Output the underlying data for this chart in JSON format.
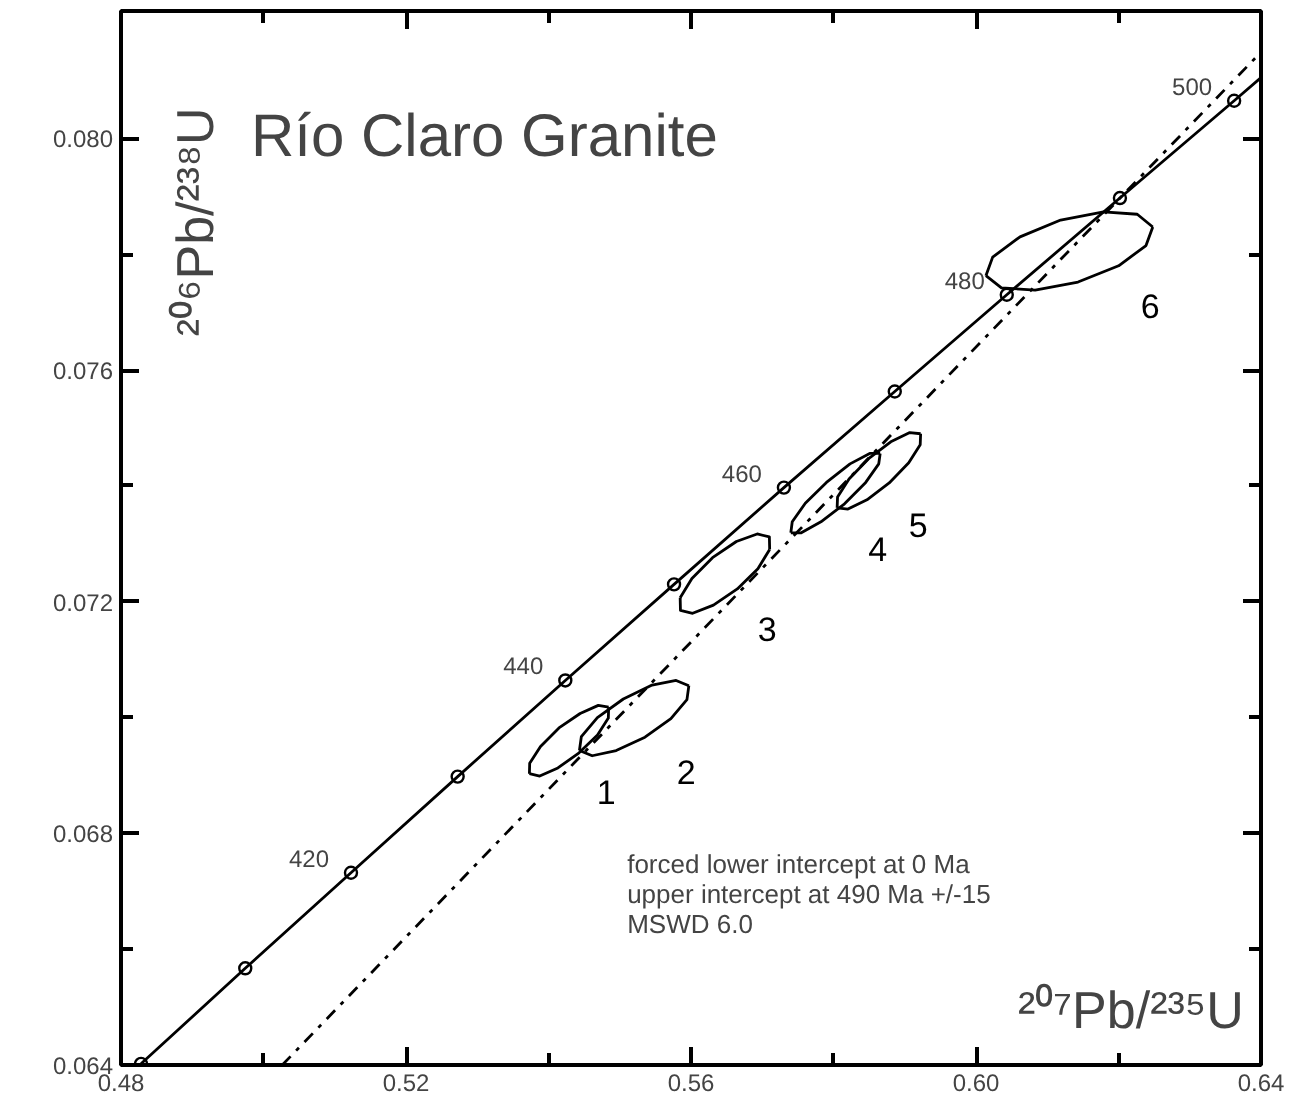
{
  "chart_data": {
    "type": "line",
    "title": "Río Claro Granite",
    "xlabel": "²⁰⁷Pb/²³⁵U",
    "ylabel": "²⁰⁶Pb/²³⁸U",
    "xlim": [
      0.48,
      0.64
    ],
    "ylim": [
      0.064,
      0.0822
    ],
    "xticks": [
      0.48,
      {
        "value": 0.5,
        "label": null
      },
      0.52,
      {
        "value": 0.54,
        "label": null
      },
      0.56,
      {
        "value": 0.58,
        "label": null
      },
      {
        "value": 0.6,
        "label": "0.60"
      },
      {
        "value": 0.62,
        "label": null
      },
      0.64
    ],
    "yticks": [
      0.064,
      {
        "value": 0.066,
        "label": null
      },
      0.068,
      {
        "value": 0.07,
        "label": null
      },
      0.072,
      {
        "value": 0.074,
        "label": null
      },
      0.076,
      {
        "value": 0.078,
        "label": null
      },
      {
        "value": 0.08,
        "label": "0.080"
      }
    ],
    "series": [
      {
        "color": "#000000",
        "x": [
          0.48281,
          0.49744,
          0.51228,
          0.52725,
          0.54236,
          0.55762,
          0.57304,
          0.5886,
          0.60432,
          0.6202,
          0.63623,
          0.64
        ],
        "values": [
          0.06402,
          0.06567,
          0.06732,
          0.06898,
          0.07064,
          0.0723,
          0.07397,
          0.07563,
          0.0773,
          0.07897,
          0.08065,
          0.08105
        ]
      },
      {
        "type": "scatter",
        "marker": "circle",
        "color": "#000000",
        "x": [
          0.48281,
          0.49744,
          0.51228,
          0.52725,
          0.54236,
          0.55762,
          0.57304,
          0.5886,
          0.60432,
          0.6202,
          0.63623
        ],
        "values": [
          0.06402,
          0.06567,
          0.06732,
          0.06898,
          0.07064,
          0.0723,
          0.07397,
          0.07563,
          0.0773,
          0.07897,
          0.08065
        ]
      },
      {
        "line_style": "dashdot",
        "color": "#000000",
        "x": [
          0.50263,
          0.64
        ],
        "values": [
          0.064,
          0.08149
        ]
      },
      {
        "color": "#000000",
        "x": [
          0.54844,
          0.54699,
          0.54444,
          0.54147,
          0.53888,
          0.53736,
          0.53732
        ],
        "values": [
          0.07018,
          0.07021,
          0.07007,
          0.06982,
          0.0695,
          0.06921,
          0.06903
        ]
      },
      {
        "name": "1",
        "color": "#000000",
        "x": [
          0.53732,
          0.53877,
          0.54132,
          0.54429,
          0.54688,
          0.5484,
          0.54844
        ],
        "values": [
          0.06903,
          0.06899,
          0.06913,
          0.06939,
          0.0697,
          0.06999,
          0.07018
        ]
      },
      {
        "color": "#000000",
        "x": [
          0.5597,
          0.55791,
          0.55454,
          0.5505,
          0.54686,
          0.54461,
          0.54434
        ],
        "values": [
          0.07055,
          0.07064,
          0.07056,
          0.07032,
          0.07,
          0.06967,
          0.06943
        ]
      },
      {
        "name": "2",
        "color": "#000000",
        "x": [
          0.54434,
          0.54613,
          0.5495,
          0.55354,
          0.55718,
          0.55943,
          0.5597
        ],
        "values": [
          0.06943,
          0.06934,
          0.06943,
          0.06966,
          0.06998,
          0.07031,
          0.07055
        ]
      },
      {
        "color": "#000000",
        "x": [
          0.57104,
          0.571,
          0.56929,
          0.56637,
          0.56302,
          0.56013,
          0.55848
        ],
        "values": [
          0.0729,
          0.07312,
          0.07317,
          0.07304,
          0.07276,
          0.0724,
          0.07207
        ]
      },
      {
        "name": "3",
        "color": "#000000",
        "x": [
          0.55848,
          0.55852,
          0.56023,
          0.56315,
          0.5665,
          0.56939,
          0.57104
        ],
        "values": [
          0.07207,
          0.07185,
          0.0718,
          0.07194,
          0.07222,
          0.07257,
          0.0729
        ]
      },
      {
        "color": "#000000",
        "x": [
          0.58655,
          0.58508,
          0.58232,
          0.57901,
          0.57604,
          0.57421,
          0.57401
        ],
        "values": [
          0.07456,
          0.07456,
          0.07438,
          0.07406,
          0.0737,
          0.07338,
          0.07319
        ]
      },
      {
        "name": "4",
        "color": "#000000",
        "x": [
          0.57401,
          0.57548,
          0.57824,
          0.58155,
          0.58452,
          0.58635,
          0.58655
        ],
        "values": [
          0.07319,
          0.07319,
          0.07338,
          0.07369,
          0.07406,
          0.07438,
          0.07456
        ]
      },
      {
        "color": "#000000",
        "x": [
          0.59223,
          0.59071,
          0.58804,
          0.58492,
          0.58218,
          0.58057,
          0.58051
        ],
        "values": [
          0.0749,
          0.07492,
          0.07476,
          0.07447,
          0.07412,
          0.07381,
          0.07362
        ]
      },
      {
        "name": "5",
        "color": "#000000",
        "x": [
          0.58051,
          0.58203,
          0.5847,
          0.58782,
          0.59056,
          0.59217,
          0.59223
        ],
        "values": [
          0.07362,
          0.0736,
          0.07376,
          0.07405,
          0.0744,
          0.07471,
          0.0749
        ]
      },
      {
        "color": "#000000",
        "x": [
          0.62481,
          0.62263,
          0.6179,
          0.61188,
          0.60618,
          0.60234,
          0.60139
        ],
        "values": [
          0.07847,
          0.07869,
          0.07873,
          0.07859,
          0.0783,
          0.07795,
          0.07763
        ]
      },
      {
        "name": "6",
        "color": "#000000",
        "x": [
          0.60139,
          0.60357,
          0.6083,
          0.61432,
          0.62002,
          0.62386,
          0.62481
        ],
        "values": [
          0.07763,
          0.07742,
          0.07738,
          0.07752,
          0.0778,
          0.07815,
          0.07847
        ]
      }
    ],
    "annotations": [
      {
        "text": "420",
        "x": 0.51228,
        "y": 0.06732
      },
      {
        "text": "440",
        "x": 0.54236,
        "y": 0.07064
      },
      {
        "text": "460",
        "x": 0.57304,
        "y": 0.07397
      },
      {
        "text": "480",
        "x": 0.60432,
        "y": 0.0773
      },
      {
        "text": "500",
        "x": 0.63623,
        "y": 0.08065
      },
      "forced lower intercept at 0 Ma",
      "upper intercept at 490 Ma +/-15",
      "MSWD 6.0"
    ]
  }
}
